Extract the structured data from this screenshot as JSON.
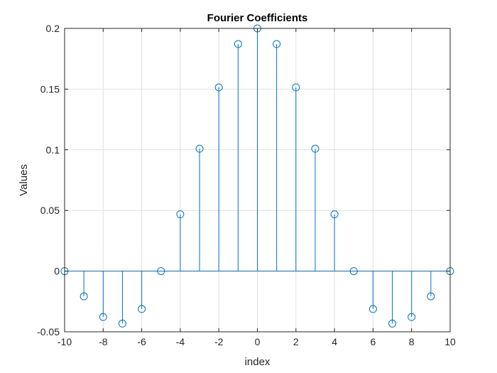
{
  "chart_data": {
    "type": "stem",
    "title": "Fourier Coefficients",
    "xlabel": "index",
    "ylabel": "Values",
    "xlim": [
      -10,
      10
    ],
    "ylim": [
      -0.05,
      0.2
    ],
    "xticks": [
      -10,
      -8,
      -6,
      -4,
      -2,
      0,
      2,
      4,
      6,
      8,
      10
    ],
    "yticks": [
      -0.05,
      0,
      0.05,
      0.1,
      0.15,
      0.2
    ],
    "xtick_labels": [
      "-10",
      "-8",
      "-6",
      "-4",
      "-2",
      "0",
      "2",
      "4",
      "6",
      "8",
      "10"
    ],
    "ytick_labels": [
      "-0.05",
      "0",
      "0.05",
      "0.1",
      "0.15",
      "0.2"
    ],
    "grid": true,
    "series": [
      {
        "marker": "circle",
        "color": "#0072BD",
        "x": [
          -10,
          -9,
          -8,
          -7,
          -6,
          -5,
          -4,
          -3,
          -2,
          -1,
          0,
          1,
          2,
          3,
          4,
          5,
          6,
          7,
          8,
          9,
          10
        ],
        "values": [
          0,
          -0.0208,
          -0.0378,
          -0.0432,
          -0.0312,
          0,
          0.0468,
          0.1009,
          0.1514,
          0.1871,
          0.2,
          0.1871,
          0.1514,
          0.1009,
          0.0468,
          0,
          -0.0312,
          -0.0432,
          -0.0378,
          -0.0208,
          0
        ]
      }
    ]
  }
}
